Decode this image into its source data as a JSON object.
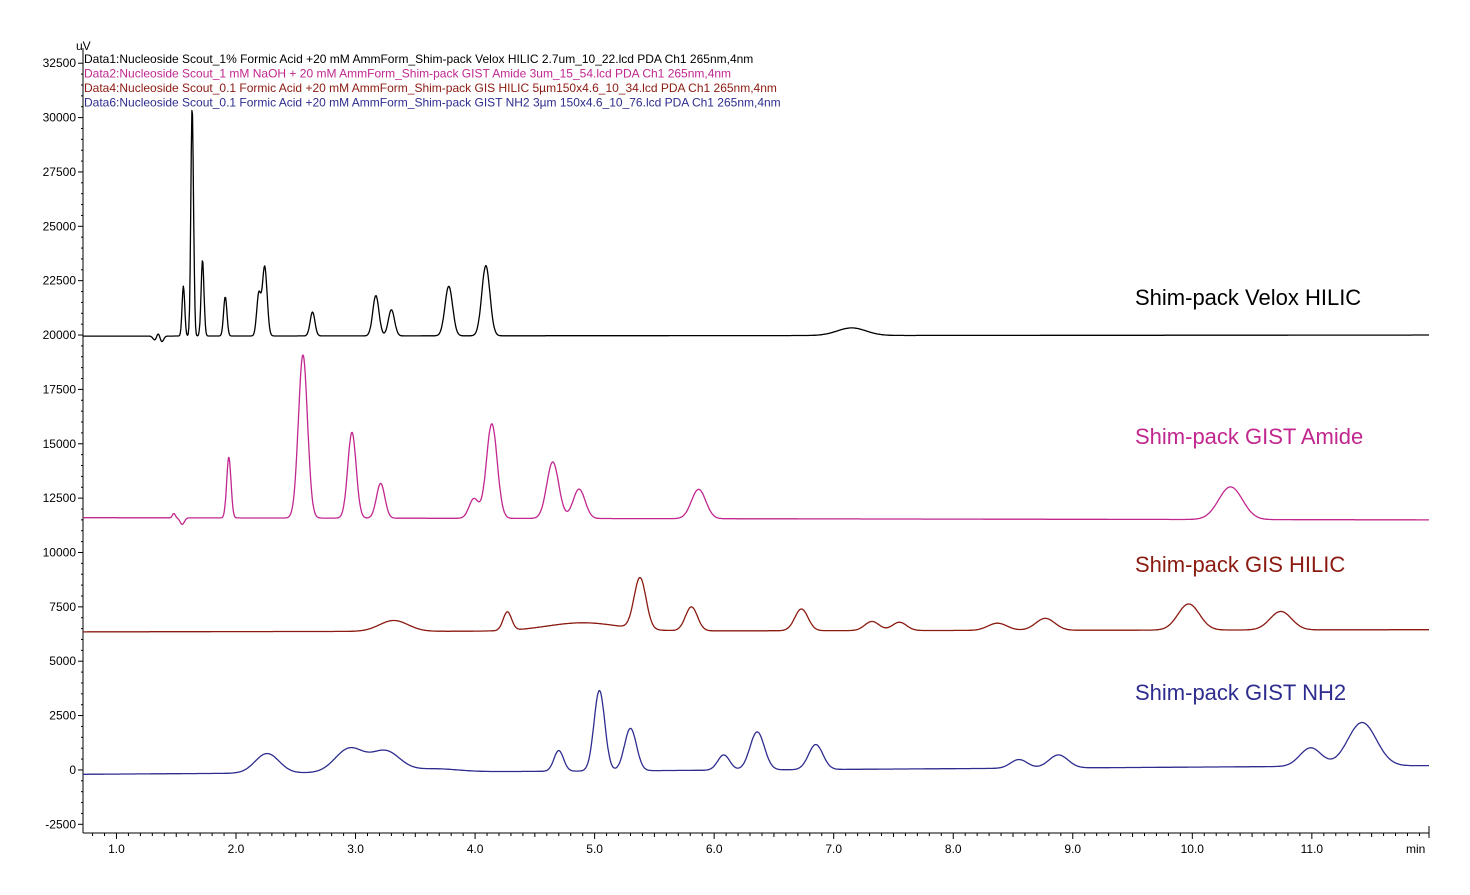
{
  "chart_data": {
    "type": "line",
    "y_unit_label": "uV",
    "x_unit_label": "min",
    "xlim": [
      0.72,
      11.98
    ],
    "ylim": [
      -2900,
      33200
    ],
    "x_ticks": [
      1.0,
      2.0,
      3.0,
      4.0,
      5.0,
      6.0,
      7.0,
      8.0,
      9.0,
      10.0,
      11.0
    ],
    "x_tick_labels": [
      "1.0",
      "2.0",
      "3.0",
      "4.0",
      "5.0",
      "6.0",
      "7.0",
      "8.0",
      "9.0",
      "10.0",
      "11.0"
    ],
    "y_ticks": [
      -2500,
      0,
      2500,
      5000,
      7500,
      10000,
      12500,
      15000,
      17500,
      20000,
      22500,
      25000,
      27500,
      30000,
      32500
    ],
    "y_tick_labels": [
      "-2500",
      "0",
      "2500",
      "5000",
      "7500",
      "10000",
      "12500",
      "15000",
      "17500",
      "20000",
      "22500",
      "25000",
      "27500",
      "30000",
      "32500"
    ],
    "grid": false,
    "legend_position": "top-left",
    "series": [
      {
        "name": "Data1:Nucleoside Scout_1% Formic Acid +20 mM AmmForm_Shim-pack Velox HILIC 2.7um_10_22.lcd PDA Ch1 265nm,4nm",
        "label": "Shim-pack Velox HILIC",
        "color": "#000000",
        "baseline": 19950,
        "baseline_end": 20000,
        "disturbances": [
          [
            1.32,
            -180,
            0.015
          ],
          [
            1.35,
            150,
            0.012
          ],
          [
            1.38,
            -260,
            0.015
          ]
        ],
        "peaks": [
          [
            1.56,
            2300,
            0.011
          ],
          [
            1.63,
            7600,
            0.01
          ],
          [
            1.64,
            4200,
            0.01
          ],
          [
            1.72,
            3500,
            0.012
          ],
          [
            1.91,
            1800,
            0.014
          ],
          [
            2.19,
            1900,
            0.017
          ],
          [
            2.24,
            3200,
            0.02
          ],
          [
            2.64,
            1100,
            0.02
          ],
          [
            3.17,
            1850,
            0.026
          ],
          [
            3.3,
            1200,
            0.026
          ],
          [
            3.78,
            2280,
            0.032
          ],
          [
            4.09,
            3230,
            0.034
          ],
          [
            7.15,
            350,
            0.12
          ]
        ]
      },
      {
        "name": "Data2:Nucleoside Scout_1 mM NaOH + 20 mM AmmForm_Shim-pack GIST Amide 3um_15_54.lcd PDA Ch1 265nm,4nm",
        "label": "Shim-pack GIST Amide",
        "color": "#c1278f",
        "baseline": 11600,
        "baseline_end": 11500,
        "disturbances": [
          [
            1.48,
            200,
            0.012
          ],
          [
            1.55,
            -300,
            0.018
          ]
        ],
        "peaks": [
          [
            1.94,
            2800,
            0.018
          ],
          [
            2.56,
            7500,
            0.038
          ],
          [
            2.97,
            3950,
            0.035
          ],
          [
            3.21,
            1600,
            0.035
          ],
          [
            3.99,
            900,
            0.04
          ],
          [
            4.14,
            4350,
            0.045
          ],
          [
            4.65,
            2600,
            0.05
          ],
          [
            4.87,
            1350,
            0.05
          ],
          [
            5.87,
            1350,
            0.06
          ],
          [
            10.32,
            1500,
            0.1
          ]
        ]
      },
      {
        "name": "Data4:Nucleoside Scout_0.1 Formic Acid +20 mM AmmForm_Shim-pack GIS HILIC 5µm150x4.6_10_34.lcd PDA Ch1 265nm,4nm",
        "label": "Shim-pack GIS HILIC",
        "color": "#8b1a10",
        "baseline": 6350,
        "baseline_end": 6450,
        "disturbances": [],
        "peaks": [
          [
            3.32,
            500,
            0.12
          ],
          [
            4.27,
            850,
            0.035
          ],
          [
            4.9,
            380,
            0.3
          ],
          [
            5.38,
            2350,
            0.05
          ],
          [
            5.81,
            1100,
            0.05
          ],
          [
            6.73,
            1000,
            0.055
          ],
          [
            7.32,
            420,
            0.06
          ],
          [
            7.55,
            380,
            0.06
          ],
          [
            8.37,
            330,
            0.08
          ],
          [
            8.77,
            550,
            0.08
          ],
          [
            9.97,
            1200,
            0.09
          ],
          [
            10.74,
            850,
            0.09
          ]
        ]
      },
      {
        "name": "Data6:Nucleoside Scout_0.1 Formic Acid +20 mM AmmForm_Shim-pack GIST NH2 3µm 150x4.6_10_76.lcd PDA Ch1 265nm,4nm",
        "label": "Shim-pack GIST NH2",
        "color": "#2e2d8f",
        "baseline": -200,
        "baseline_end": 200,
        "disturbances": [],
        "peaks": [
          [
            2.26,
            900,
            0.1
          ],
          [
            2.95,
            1100,
            0.12
          ],
          [
            3.25,
            950,
            0.12
          ],
          [
            3.65,
            150,
            0.2
          ],
          [
            4.7,
            950,
            0.04
          ],
          [
            5.04,
            3700,
            0.045
          ],
          [
            5.3,
            1950,
            0.05
          ],
          [
            6.08,
            700,
            0.05
          ],
          [
            6.36,
            1750,
            0.06
          ],
          [
            6.85,
            1150,
            0.06
          ],
          [
            8.55,
            400,
            0.07
          ],
          [
            8.88,
            600,
            0.08
          ],
          [
            10.99,
            850,
            0.09
          ],
          [
            11.42,
            2000,
            0.12
          ]
        ]
      }
    ]
  }
}
